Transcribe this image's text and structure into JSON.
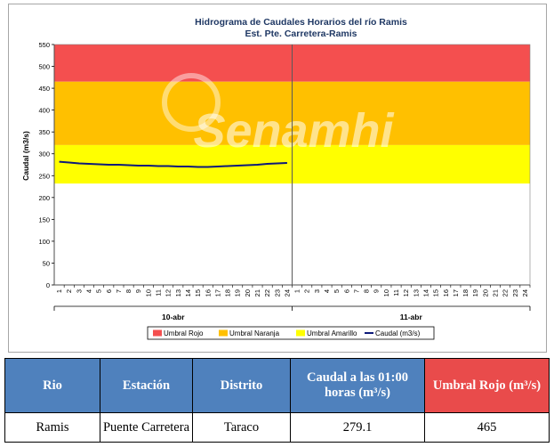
{
  "chart_data": {
    "type": "line",
    "title": "Hidrograma de Caudales Horarios del río Ramis",
    "subtitle": "Est. Pte. Carretera-Ramis",
    "ylabel": "Caudal  (m3/s)",
    "ylim": [
      0,
      550
    ],
    "yticks": [
      0,
      50,
      100,
      150,
      200,
      250,
      300,
      350,
      400,
      450,
      500,
      550
    ],
    "x_hours": [
      "1",
      "2",
      "3",
      "4",
      "5",
      "6",
      "7",
      "8",
      "9",
      "10",
      "11",
      "12",
      "13",
      "14",
      "15",
      "16",
      "17",
      "18",
      "19",
      "20",
      "21",
      "22",
      "23",
      "24"
    ],
    "days": [
      "10-abr",
      "11-abr"
    ],
    "thresholds": {
      "amarillo": [
        232,
        320
      ],
      "naranja": [
        320,
        465
      ],
      "rojo": [
        465,
        550
      ]
    },
    "series": [
      {
        "name": "Caudal (m3/s)",
        "day": "10-abr",
        "x": [
          1,
          2,
          3,
          4,
          5,
          6,
          7,
          8,
          9,
          10,
          11,
          12,
          13,
          14,
          15,
          16,
          17,
          18,
          19,
          20,
          21,
          22,
          23,
          24
        ],
        "values": [
          282,
          280,
          278,
          277,
          276,
          275,
          275,
          274,
          273,
          273,
          272,
          272,
          271,
          271,
          270,
          270,
          271,
          272,
          273,
          274,
          275,
          277,
          278,
          279
        ]
      }
    ],
    "legend": [
      "Umbral Rojo",
      "Umbral Naranja",
      "Umbral Amarillo",
      "Caudal (m3/s)"
    ],
    "legend_position": "bottom",
    "watermark": "Senamhi",
    "colors": {
      "rojo": "#f44f4f",
      "naranja": "#ffc000",
      "amarillo": "#ffff00",
      "caudal": "#0d1a7a"
    }
  },
  "table": {
    "headers": [
      "Rio",
      "Estación",
      "Distrito",
      "Caudal a las 01:00 horas (m³/s)",
      "Umbral Rojo (m³/s)"
    ],
    "row": [
      "Ramis",
      "Puente Carretera",
      "Taraco",
      "279.1",
      "465"
    ],
    "colors": {
      "header": "#4f81bd",
      "header_red": "#e94b4b"
    }
  }
}
